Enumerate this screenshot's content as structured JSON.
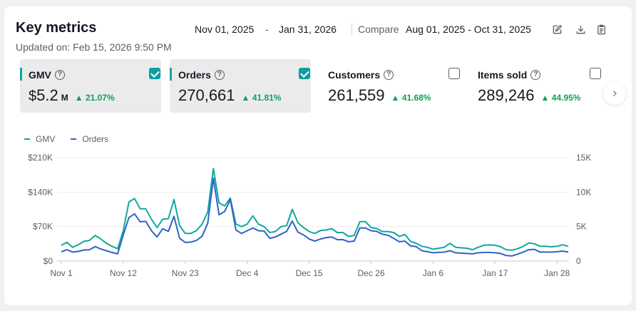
{
  "header": {
    "title": "Key metrics",
    "updated": "Updated on: Feb 15, 2026 9:50 PM",
    "date_start": "Nov 01, 2025",
    "date_sep": "-",
    "date_end": "Jan 31, 2026",
    "compare_label": "Compare",
    "compare_range": "Aug 01, 2025 - Oct 31, 2025",
    "tools": [
      "edit-icon",
      "download-icon",
      "clipboard-icon"
    ]
  },
  "metrics": [
    {
      "label": "GMV",
      "prefix": "$",
      "value": "5.2",
      "unit": "M",
      "change": "21.07%",
      "checked": true,
      "selected": true,
      "color": "#10a89e"
    },
    {
      "label": "Orders",
      "prefix": "",
      "value": "270,661",
      "unit": "",
      "change": "41.81%",
      "checked": true,
      "selected": true,
      "color": "#2f63c7"
    },
    {
      "label": "Customers",
      "prefix": "",
      "value": "261,559",
      "unit": "",
      "change": "41.68%",
      "checked": false,
      "selected": false,
      "color": ""
    },
    {
      "label": "Items sold",
      "prefix": "",
      "value": "289,246",
      "unit": "",
      "change": "44.95%",
      "checked": false,
      "selected": false,
      "color": ""
    }
  ],
  "legend": [
    {
      "name": "GMV",
      "color": "#10a89e"
    },
    {
      "name": "Orders",
      "color": "#2f63c7"
    }
  ],
  "chart_data": {
    "type": "line",
    "x_labels": [
      "Nov 1",
      "Nov 12",
      "Nov 23",
      "Dec 4",
      "Dec 15",
      "Dec 26",
      "Jan 6",
      "Jan 17",
      "Jan 28"
    ],
    "y_left_ticks": [
      "$0",
      "$70K",
      "$140K",
      "$210K"
    ],
    "y_left_range": [
      0,
      210000
    ],
    "y_right_ticks": [
      "0",
      "5K",
      "10K",
      "15K"
    ],
    "y_right_range": [
      0,
      15000
    ],
    "grid": true,
    "series": [
      {
        "name": "GMV",
        "axis": "left",
        "color": "#10a89e",
        "values": [
          32000,
          38000,
          28000,
          33000,
          40000,
          42000,
          52000,
          45000,
          36000,
          30000,
          25000,
          62000,
          120000,
          127000,
          106000,
          106000,
          85000,
          68000,
          85000,
          86000,
          125000,
          72000,
          56000,
          56000,
          62000,
          75000,
          100000,
          188000,
          118000,
          112000,
          128000,
          75000,
          70000,
          75000,
          92000,
          75000,
          70000,
          58000,
          60000,
          70000,
          72000,
          105000,
          78000,
          68000,
          60000,
          56000,
          62000,
          63000,
          66000,
          58000,
          58000,
          50000,
          52000,
          80000,
          80000,
          68000,
          66000,
          60000,
          60000,
          58000,
          50000,
          54000,
          40000,
          36000,
          30000,
          28000,
          24000,
          26000,
          28000,
          36000,
          28000,
          27000,
          26000,
          23000,
          28000,
          32000,
          33000,
          32000,
          29000,
          23000,
          22000,
          25000,
          30000,
          37000,
          35000,
          30000,
          30000,
          29000,
          30000,
          33000,
          30000
        ]
      },
      {
        "name": "Orders",
        "axis": "right",
        "color": "#2f63c7",
        "values": [
          1350,
          1650,
          1300,
          1400,
          1600,
          1650,
          2100,
          1750,
          1500,
          1250,
          1050,
          3800,
          6300,
          6850,
          5700,
          5750,
          4400,
          3500,
          4700,
          4300,
          6500,
          3300,
          2700,
          2750,
          3000,
          3600,
          5500,
          12000,
          6700,
          7200,
          8900,
          4500,
          4000,
          4400,
          4800,
          4400,
          4350,
          3300,
          3500,
          3900,
          4300,
          5800,
          4200,
          3800,
          3200,
          2900,
          3200,
          3400,
          3500,
          3100,
          3100,
          2800,
          2900,
          4800,
          4800,
          4400,
          4300,
          3900,
          3750,
          3300,
          2800,
          2900,
          2200,
          2100,
          1500,
          1350,
          1200,
          1250,
          1300,
          1500,
          1200,
          1150,
          1100,
          1050,
          1200,
          1250,
          1250,
          1200,
          1100,
          800,
          750,
          1000,
          1300,
          1650,
          1700,
          1300,
          1300,
          1300,
          1350,
          1450,
          1300
        ]
      }
    ]
  }
}
